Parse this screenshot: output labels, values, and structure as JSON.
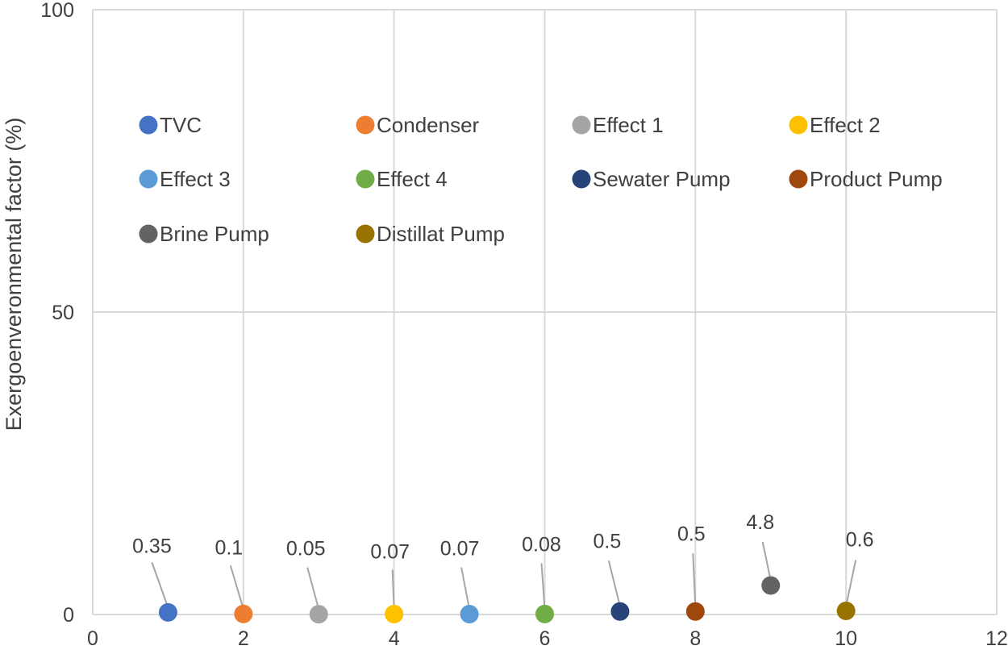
{
  "chart_data": {
    "type": "scatter",
    "title": "",
    "xlabel": "",
    "ylabel": "Exergoenveronmental factor (%)",
    "xlim": [
      0,
      12
    ],
    "ylim": [
      0,
      100
    ],
    "x_ticks": [
      0,
      2,
      4,
      6,
      8,
      10,
      12
    ],
    "y_ticks": [
      0,
      50,
      100
    ],
    "grid": true,
    "legend_position": "top, inside plot, 4 columns",
    "series": [
      {
        "name": "TVC",
        "x": 1,
        "y": 0.35,
        "label": "0.35",
        "color": "#4472C4"
      },
      {
        "name": "Condenser",
        "x": 2,
        "y": 0.1,
        "label": "0.1",
        "color": "#ED7D31"
      },
      {
        "name": "Effect 1",
        "x": 3,
        "y": 0.05,
        "label": "0.05",
        "color": "#A5A5A5"
      },
      {
        "name": "Effect 2",
        "x": 4,
        "y": 0.07,
        "label": "0.07",
        "color": "#FFC000"
      },
      {
        "name": "Effect 3",
        "x": 5,
        "y": 0.07,
        "label": "0.07",
        "color": "#5B9BD5"
      },
      {
        "name": "Effect 4",
        "x": 6,
        "y": 0.08,
        "label": "0.08",
        "color": "#70AD47"
      },
      {
        "name": "Sewater Pump",
        "x": 7,
        "y": 0.5,
        "label": "0.5",
        "color": "#264478"
      },
      {
        "name": "Product Pump",
        "x": 8,
        "y": 0.5,
        "label": "0.5",
        "color": "#9E480E"
      },
      {
        "name": "Brine Pump",
        "x": 9,
        "y": 4.8,
        "label": "4.8",
        "color": "#636363"
      },
      {
        "name": "Distillat Pump",
        "x": 10,
        "y": 0.6,
        "label": "0.6",
        "color": "#997300"
      }
    ]
  }
}
